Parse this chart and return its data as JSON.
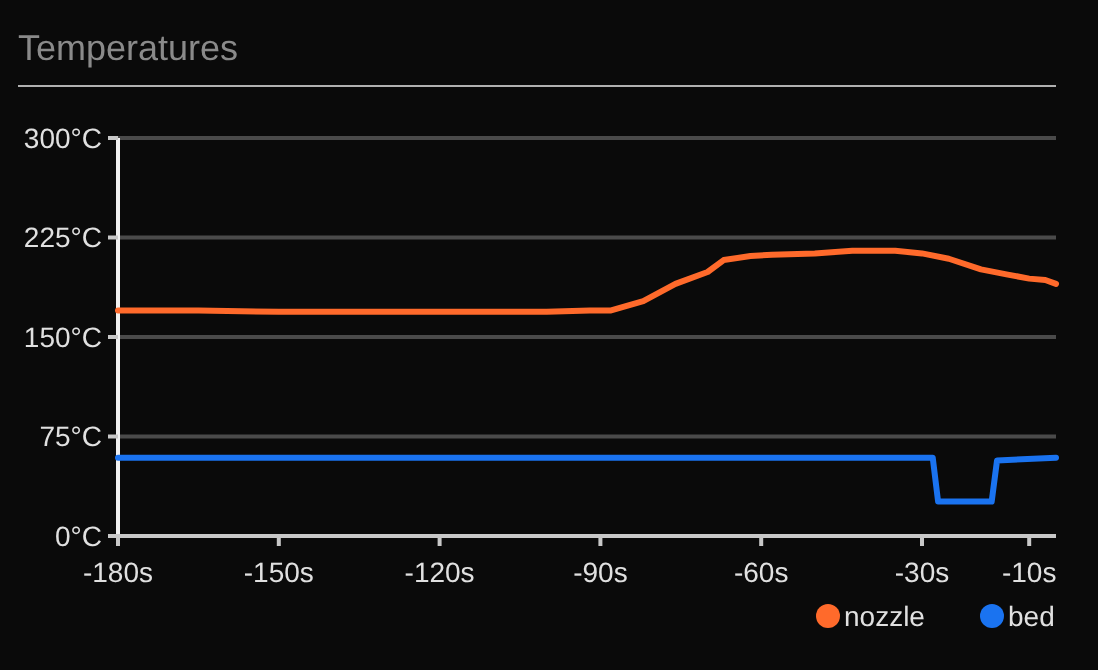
{
  "chart_data": {
    "type": "line",
    "title": "Temperatures",
    "xlim": [
      -180,
      -5
    ],
    "ylim": [
      0,
      300
    ],
    "xticks": [
      {
        "value": -180,
        "label": "-180s"
      },
      {
        "value": -150,
        "label": "-150s"
      },
      {
        "value": -120,
        "label": "-120s"
      },
      {
        "value": -90,
        "label": "-90s"
      },
      {
        "value": -60,
        "label": "-60s"
      },
      {
        "value": -30,
        "label": "-30s"
      },
      {
        "value": -10,
        "label": "-10s"
      }
    ],
    "yticks": [
      {
        "value": 0,
        "label": "0°C"
      },
      {
        "value": 75,
        "label": "75°C"
      },
      {
        "value": 150,
        "label": "150°C"
      },
      {
        "value": 225,
        "label": "225°C"
      },
      {
        "value": 300,
        "label": "300°C"
      }
    ],
    "grid": "y",
    "legend": "bottom right",
    "marker": "none",
    "line_style": "solid",
    "series": [
      {
        "name": "nozzle",
        "color": "#ff6a2b",
        "x": [
          -180,
          -165,
          -150,
          -140,
          -120,
          -100,
          -92,
          -88,
          -82,
          -76,
          -70,
          -67,
          -62,
          -58,
          -50,
          -43,
          -35,
          -30,
          -25,
          -19,
          -14,
          -10,
          -7,
          -5
        ],
        "values": [
          170,
          170,
          169,
          169,
          169,
          169,
          170,
          170,
          177,
          190,
          199,
          208,
          211,
          212,
          213,
          215,
          215,
          213,
          209,
          201,
          197,
          194,
          193,
          190
        ]
      },
      {
        "name": "bed",
        "color": "#1a73f0",
        "x": [
          -180,
          -150,
          -120,
          -90,
          -60,
          -28,
          -27,
          -17,
          -16,
          -5
        ],
        "values": [
          59,
          59,
          59,
          59,
          59,
          59,
          26,
          26,
          57,
          59
        ]
      }
    ]
  }
}
